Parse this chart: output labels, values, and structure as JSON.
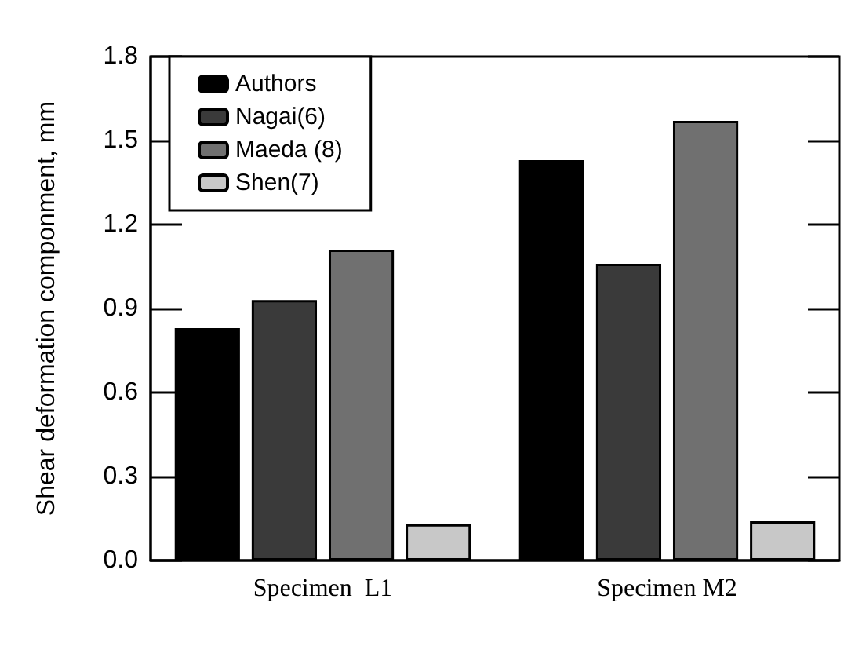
{
  "chart_data": {
    "type": "bar",
    "ylabel": "Shear deformation componment, mm",
    "categories": [
      "Specimen  L1",
      "Specimen M2"
    ],
    "series": [
      {
        "name": "Authors",
        "color": "#000000",
        "values": [
          0.83,
          1.43
        ]
      },
      {
        "name": "Nagai(6)",
        "color": "#3a3a3a",
        "values": [
          0.93,
          1.06
        ]
      },
      {
        "name": "Maeda (8)",
        "color": "#707070",
        "values": [
          1.11,
          1.57
        ]
      },
      {
        "name": "Shen(7)",
        "color": "#c8c8c8",
        "values": [
          0.13,
          0.14
        ]
      }
    ],
    "ylim": [
      0,
      1.8
    ],
    "yticks": [
      {
        "value": 0,
        "label": "0.0"
      },
      0.3,
      0.6,
      0.9,
      1.2,
      1.5,
      1.8
    ],
    "grid": false,
    "legend": "top left"
  }
}
